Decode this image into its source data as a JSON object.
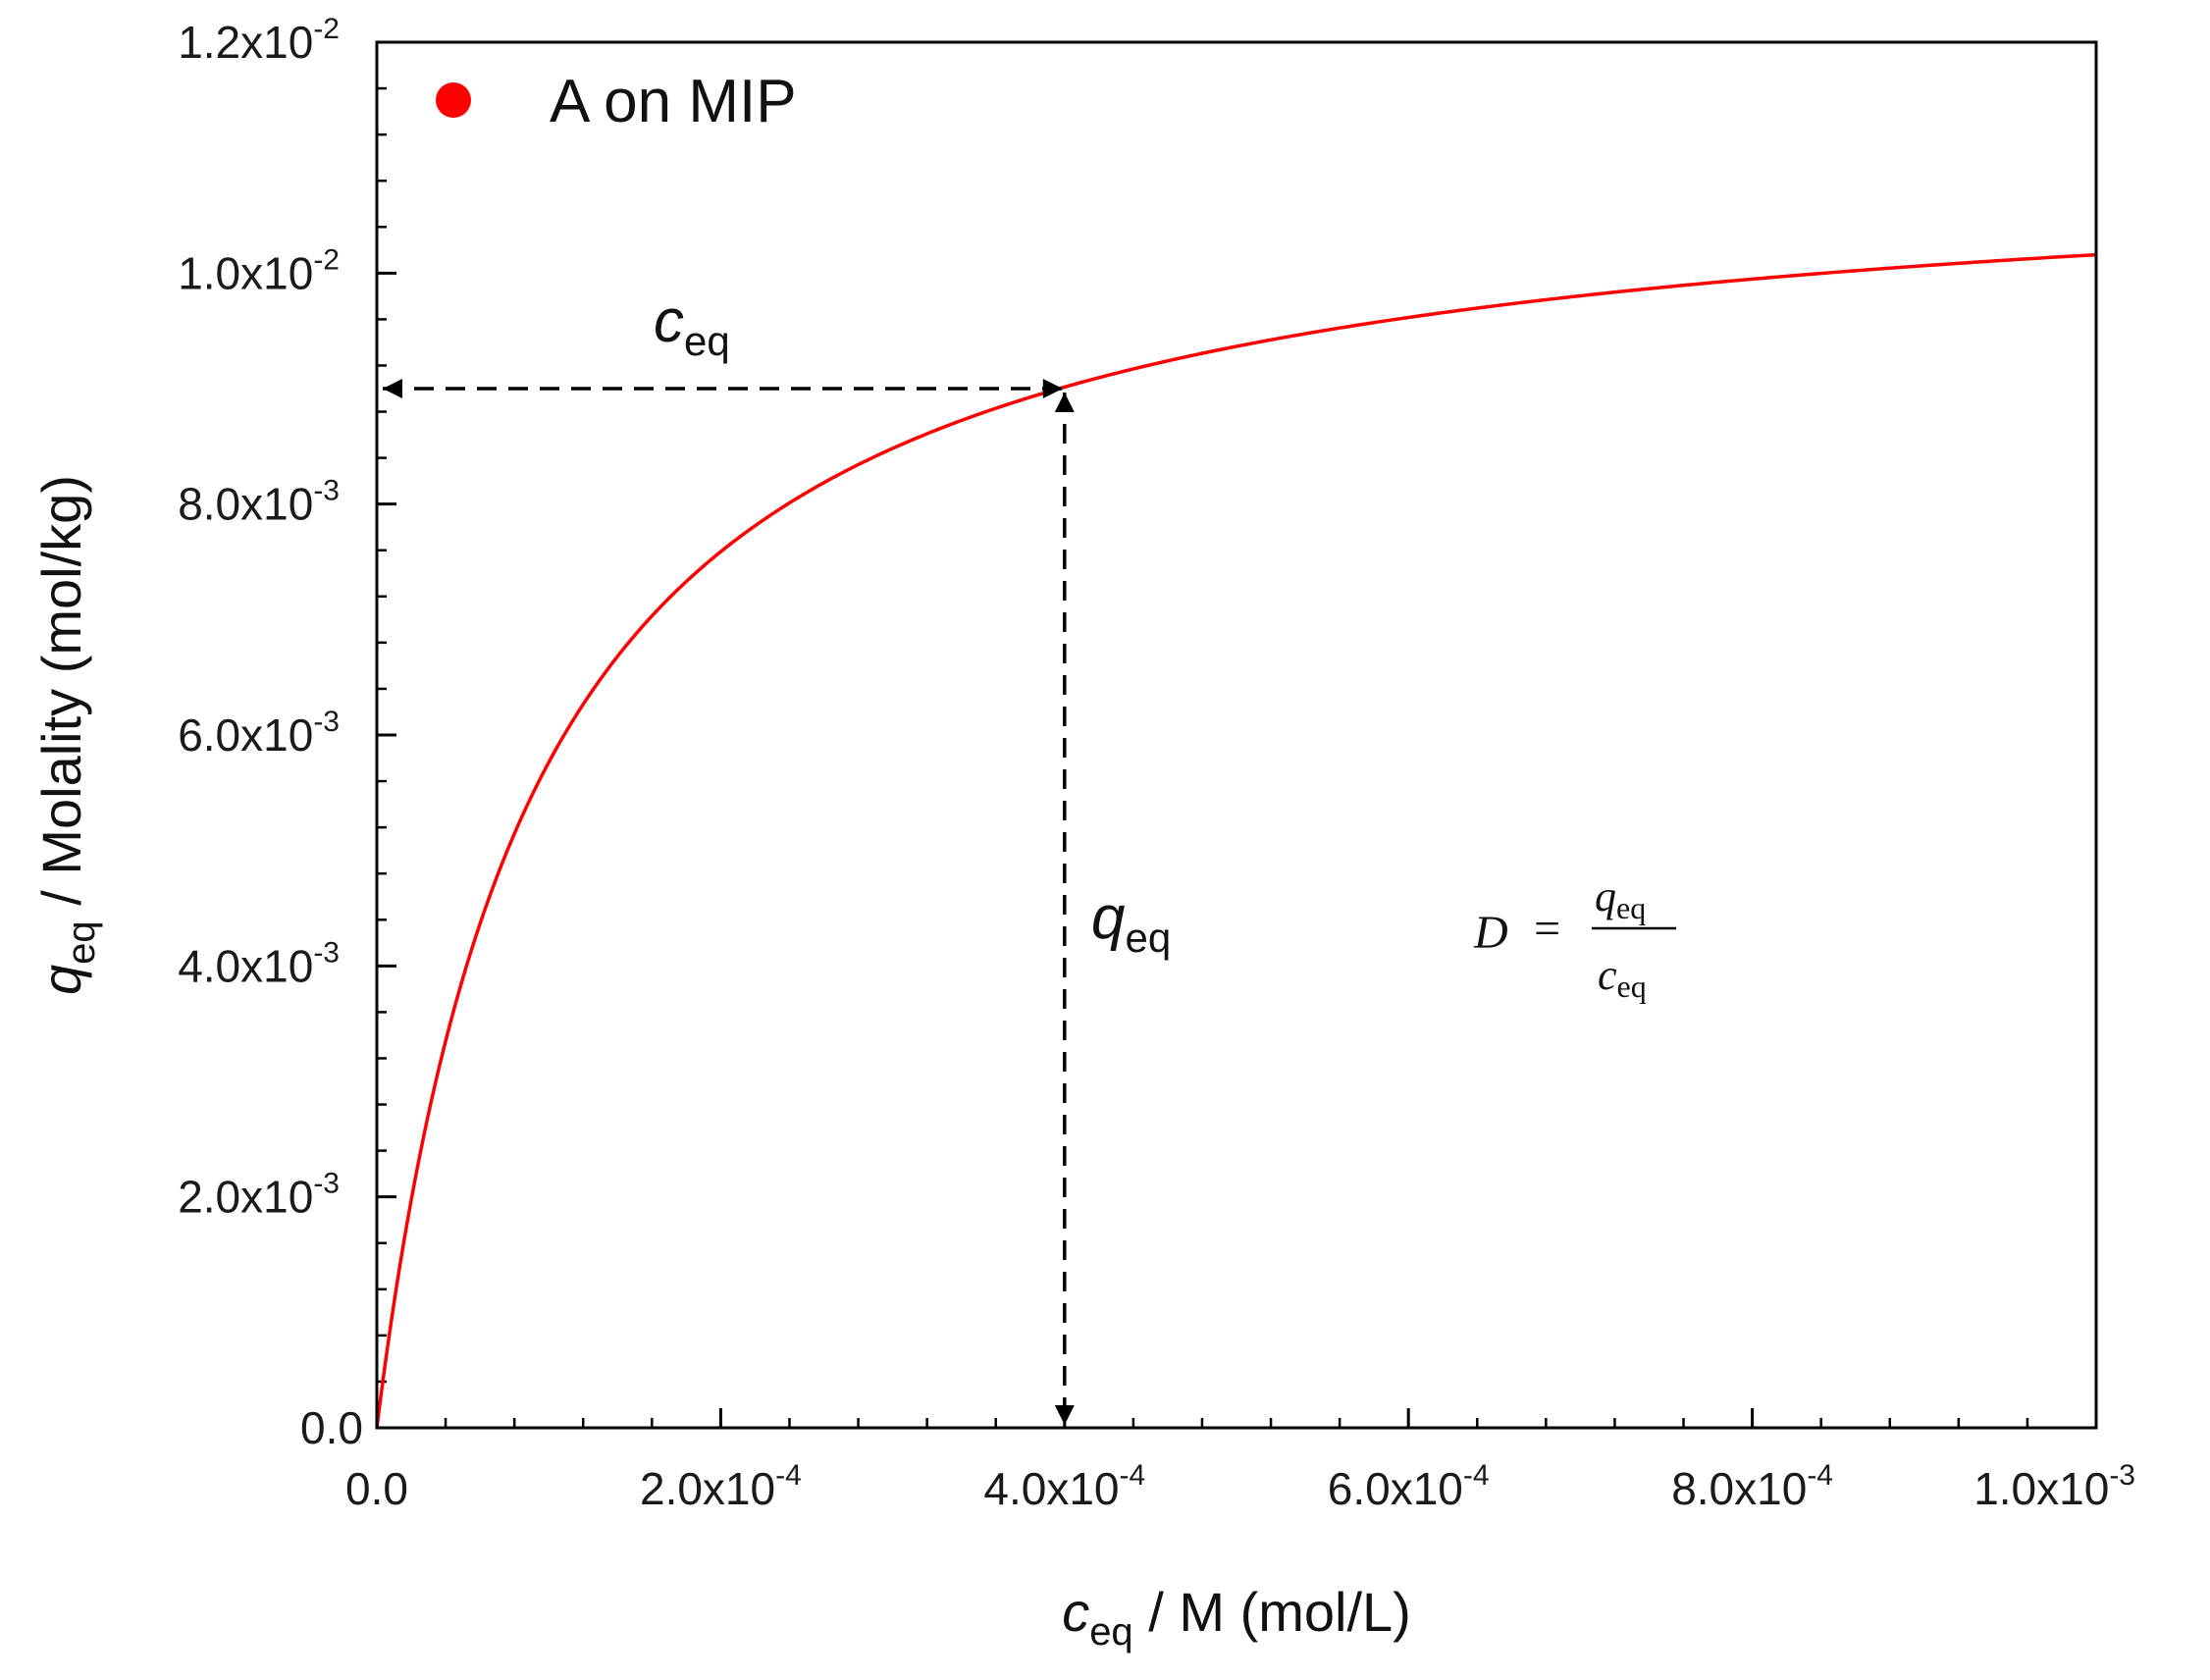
{
  "chart_data": {
    "type": "line",
    "x": [
      0,
      1e-05,
      2e-05,
      5e-05,
      0.0001,
      0.00015,
      0.0002,
      0.0003,
      0.0004,
      0.0005,
      0.0006,
      0.0007,
      0.0008,
      0.0009,
      0.001
    ],
    "series": [
      {
        "name": "A on MIP",
        "color": "#ff0000",
        "model": "langmuir",
        "qmax": 0.0111,
        "K": 10800,
        "values": [
          0,
          0.00108,
          0.00197,
          0.00389,
          0.00576,
          0.00683,
          0.00762,
          0.00852,
          0.009,
          0.00932,
          0.00954,
          0.00971,
          0.00983,
          0.00993,
          0.01011
        ]
      }
    ],
    "xlabel": {
      "var": "c",
      "sub": "eq",
      "text": " / M (mol/L)"
    },
    "ylabel": {
      "var": "q",
      "sub": "eq",
      "text": " / Molality (mol/kg)"
    },
    "xlim": [
      0,
      0.001
    ],
    "ylim": [
      0,
      0.012
    ],
    "x_ticks": [
      {
        "value": 0,
        "base": "0.0",
        "exp": ""
      },
      {
        "value": 0.0002,
        "base": "2.0x10",
        "exp": "-4"
      },
      {
        "value": 0.0004,
        "base": "4.0x10",
        "exp": "-4"
      },
      {
        "value": 0.0006,
        "base": "6.0x10",
        "exp": "-4"
      },
      {
        "value": 0.0008,
        "base": "8.0x10",
        "exp": "-4"
      },
      {
        "value": 0.001,
        "base": "1.0x10",
        "exp": "-3"
      }
    ],
    "y_ticks": [
      {
        "value": 0,
        "base": "0.0",
        "exp": ""
      },
      {
        "value": 0.002,
        "base": "2.0x10",
        "exp": "-3"
      },
      {
        "value": 0.004,
        "base": "4.0x10",
        "exp": "-3"
      },
      {
        "value": 0.006,
        "base": "6.0x10",
        "exp": "-3"
      },
      {
        "value": 0.008,
        "base": "8.0x10",
        "exp": "-3"
      },
      {
        "value": 0.01,
        "base": "1.0x10",
        "exp": "-2"
      },
      {
        "value": 0.012,
        "base": "1.2x10",
        "exp": "-2"
      }
    ],
    "x_minor_step": 4e-05,
    "y_minor_step": 0.0004,
    "grid": false,
    "legend": {
      "position": "top-left",
      "marker": "circle"
    },
    "annotations": {
      "point": {
        "x": 0.0004,
        "y": 0.009
      },
      "horizontal_label": {
        "var": "c",
        "sub": "eq"
      },
      "vertical_label": {
        "var": "q",
        "sub": "eq"
      },
      "formula": {
        "lhs": "D",
        "eq": "=",
        "num_var": "q",
        "num_sub": "eq",
        "den_var": "c",
        "den_sub": "eq"
      }
    }
  }
}
